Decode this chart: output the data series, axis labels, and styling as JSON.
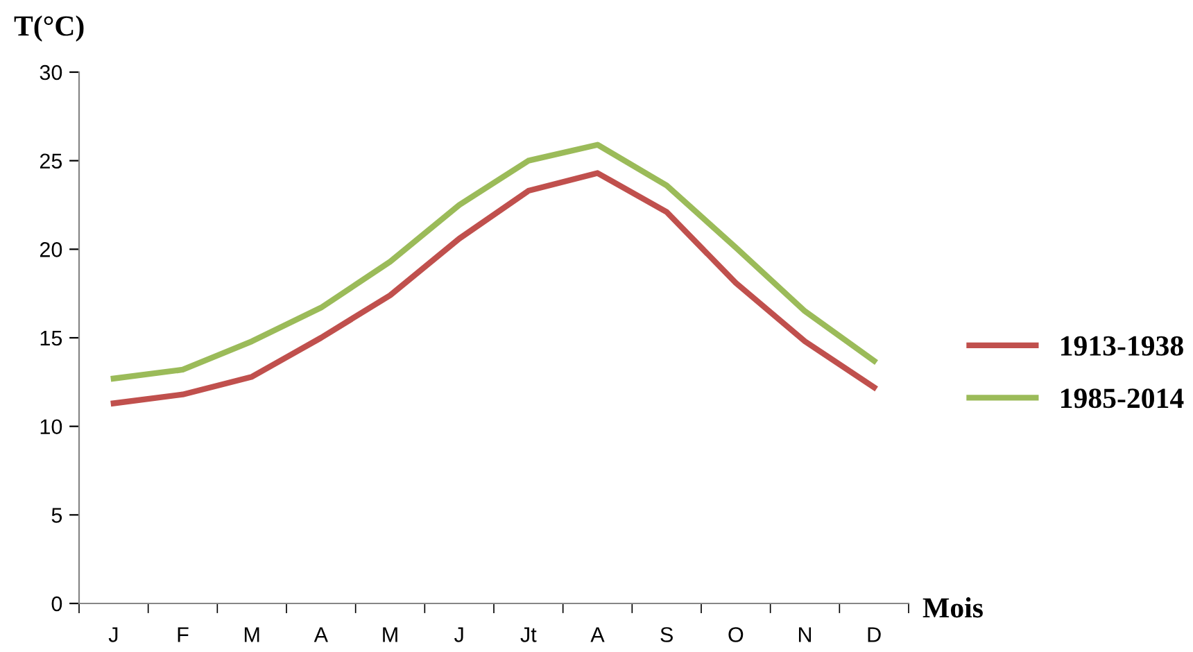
{
  "chart_data": {
    "type": "line",
    "ylabel": "T(°C)",
    "xlabel": "Mois",
    "categories": [
      "J",
      "F",
      "M",
      "A",
      "M",
      "J",
      "Jt",
      "A",
      "S",
      "O",
      "N",
      "D"
    ],
    "series": [
      {
        "name": "1913-1938",
        "color": "#c0504d",
        "values": [
          11.3,
          11.8,
          12.8,
          15.0,
          17.4,
          20.6,
          23.3,
          24.3,
          22.1,
          18.1,
          14.8,
          12.2
        ]
      },
      {
        "name": "1985-2014",
        "color": "#9bbb59",
        "values": [
          12.7,
          13.2,
          14.8,
          16.7,
          19.3,
          22.5,
          25.0,
          25.9,
          23.6,
          20.1,
          16.5,
          13.7
        ]
      }
    ],
    "ylim": [
      0,
      30
    ],
    "yticks": [
      0,
      5,
      10,
      15,
      20,
      25,
      30
    ],
    "grid": false,
    "legend": "right",
    "marker": "none",
    "line_style": "solid"
  }
}
